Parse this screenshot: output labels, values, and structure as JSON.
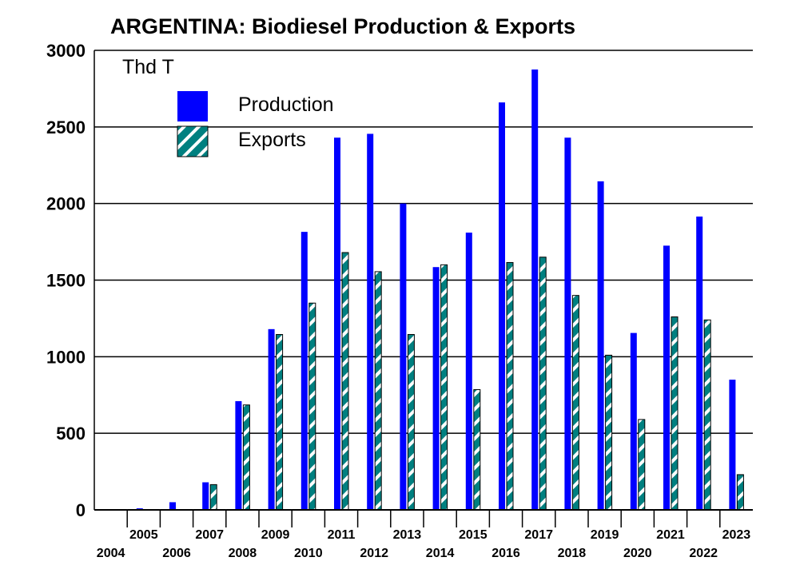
{
  "chart_data": {
    "type": "bar",
    "title": "ARGENTINA: Biodiesel Production & Exports",
    "unit_label": "Thd T",
    "categories": [
      "2004",
      "2005",
      "2006",
      "2007",
      "2008",
      "2009",
      "2010",
      "2011",
      "2012",
      "2013",
      "2014",
      "2015",
      "2016",
      "2017",
      "2018",
      "2019",
      "2020",
      "2021",
      "2022",
      "2023"
    ],
    "series": [
      {
        "name": "Production",
        "color": "#0000ff",
        "pattern": "solid",
        "values": [
          0,
          10,
          50,
          180,
          710,
          1180,
          1815,
          2430,
          2455,
          2000,
          1585,
          1810,
          2660,
          2875,
          2430,
          2145,
          1155,
          1725,
          1915,
          850
        ]
      },
      {
        "name": "Exports",
        "color": "#008080",
        "pattern": "hatched",
        "values": [
          0,
          0,
          0,
          165,
          685,
          1145,
          1350,
          1680,
          1555,
          1145,
          1600,
          785,
          1615,
          1650,
          1400,
          1010,
          590,
          1260,
          1240,
          230
        ]
      }
    ],
    "ylim": [
      0,
      3000
    ],
    "yticks": [
      0,
      500,
      1000,
      1500,
      2000,
      2500,
      3000
    ],
    "grid": true,
    "legend_position": "top-left"
  }
}
